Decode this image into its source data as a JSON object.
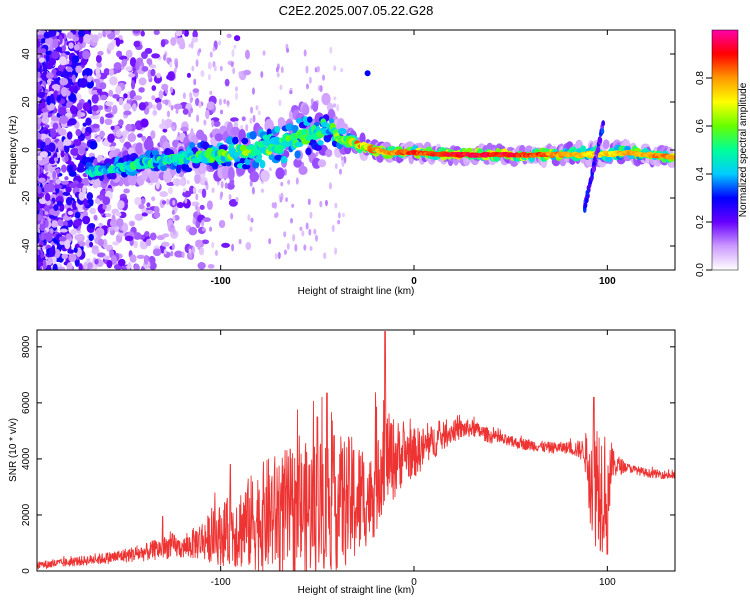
{
  "title": "C2E2.2025.007.05.22.G28",
  "chart_data": [
    {
      "type": "heatmap",
      "xlabel": "Height of straight line (km)",
      "ylabel": "Frequency (Hz)",
      "xlim": [
        -195,
        135
      ],
      "ylim": [
        -50,
        50
      ],
      "xticks": [
        -100,
        0,
        100
      ],
      "yticks": [
        -40,
        -20,
        0,
        20,
        40
      ],
      "grid": false,
      "colorbar": {
        "label": "Normalized spectral amplitude",
        "range": [
          0,
          1
        ],
        "ticks": [
          0.0,
          0.2,
          0.4,
          0.6,
          0.8
        ],
        "colors": [
          "#ffffff",
          "#cc99ff",
          "#6600ff",
          "#0000ff",
          "#00ccff",
          "#00ff99",
          "#66ff00",
          "#ffff00",
          "#ff9900",
          "#ff0000",
          "#ff00aa"
        ]
      },
      "ridge": {
        "x": [
          -165,
          -150,
          -130,
          -110,
          -90,
          -70,
          -55,
          -45,
          -40,
          -35,
          -25,
          -15,
          0,
          20,
          50,
          80,
          95,
          110,
          135
        ],
        "center_hz": [
          -9,
          -7,
          -4,
          -3,
          -1,
          2,
          6,
          10,
          6,
          4,
          1,
          -1,
          -1,
          -2,
          -2,
          -2,
          -2,
          -1,
          -3
        ],
        "spread_hz": [
          3,
          4,
          5,
          6,
          7,
          8,
          9,
          10,
          5,
          3,
          2,
          1.5,
          1.5,
          1.5,
          1.5,
          2,
          3,
          2,
          1.5
        ],
        "amplitude": [
          0.45,
          0.5,
          0.5,
          0.55,
          0.6,
          0.6,
          0.55,
          0.5,
          0.6,
          0.7,
          0.85,
          0.8,
          0.9,
          0.95,
          0.95,
          0.8,
          0.75,
          0.8,
          0.85
        ]
      }
    },
    {
      "type": "line",
      "xlabel": "Height of straight line (km)",
      "ylabel": "SNR (10 * v/v)",
      "xlim": [
        -195,
        135
      ],
      "ylim": [
        0,
        8600
      ],
      "xticks": [
        -100,
        0,
        100
      ],
      "yticks": [
        0,
        2000,
        4000,
        6000,
        8000
      ],
      "grid": false,
      "series": [
        {
          "color": "#ee3333",
          "x": [
            -195,
            -180,
            -160,
            -140,
            -125,
            -120,
            -110,
            -95,
            -85,
            -75,
            -65,
            -55,
            -45,
            -30,
            -22,
            -20,
            -15,
            -10,
            -5,
            0,
            10,
            20,
            30,
            40,
            50,
            60,
            70,
            80,
            88,
            92,
            95,
            97,
            100,
            103,
            110,
            120,
            135
          ],
          "mean": [
            200,
            300,
            450,
            650,
            900,
            800,
            1100,
            1400,
            1700,
            2000,
            2100,
            2200,
            2400,
            2500,
            2600,
            3500,
            4100,
            4000,
            4200,
            4200,
            4600,
            5000,
            5100,
            4800,
            4600,
            4500,
            4400,
            4400,
            4300,
            3500,
            3300,
            3000,
            3300,
            3800,
            3700,
            3500,
            3400
          ],
          "noise": [
            150,
            150,
            200,
            300,
            450,
            350,
            700,
            1300,
            1700,
            2100,
            2300,
            2400,
            2500,
            2300,
            1400,
            2400,
            1600,
            1500,
            1000,
            900,
            600,
            400,
            300,
            250,
            200,
            200,
            200,
            200,
            400,
            2400,
            2600,
            2400,
            2200,
            500,
            150,
            150,
            150
          ],
          "peaks": [
            [
              -15,
              8550
            ],
            [
              -45,
              6350
            ],
            [
              -130,
              1950
            ],
            [
              -95,
              3800
            ],
            [
              -50,
              5500
            ],
            [
              93,
              6200
            ],
            [
              100,
              600
            ]
          ]
        }
      ]
    }
  ]
}
